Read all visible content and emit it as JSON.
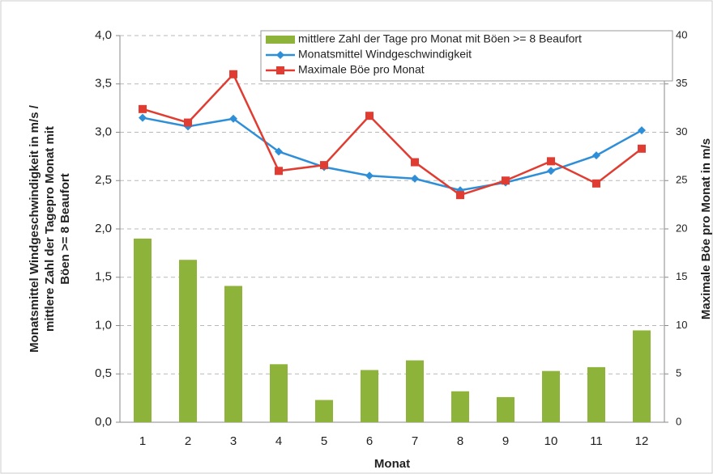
{
  "chart_data": {
    "type": "bar_line_combo",
    "ylabel": [
      "Monatsmittel  Windgeschwindigkeit in m/s /",
      "mittlere Zahl der Tagepro Monat mit",
      "Böen >= 8 Beaufort"
    ],
    "y2label": "Maximale Böe pro Monat in m/s",
    "xlabel": "Monat",
    "categories": [
      "1",
      "2",
      "3",
      "4",
      "5",
      "6",
      "7",
      "8",
      "9",
      "10",
      "11",
      "12"
    ],
    "ylim": [
      0,
      4
    ],
    "yticks": [
      {
        "value": 0,
        "label": "0,0"
      },
      {
        "value": 0.5,
        "label": "0,5"
      },
      {
        "value": 1,
        "label": "1,0"
      },
      {
        "value": 1.5,
        "label": "1,5"
      },
      {
        "value": 2,
        "label": "2,0"
      },
      {
        "value": 2.5,
        "label": "2,5"
      },
      {
        "value": 3,
        "label": "3,0"
      },
      {
        "value": 3.5,
        "label": "3,5"
      },
      {
        "value": 4,
        "label": "4,0"
      }
    ],
    "y2lim": [
      0,
      40
    ],
    "y2ticks": [
      0,
      5,
      10,
      15,
      20,
      25,
      30,
      35,
      40
    ],
    "grid": true,
    "legend": "top-right",
    "series": [
      {
        "name": "mittlere Zahl der Tage pro Monat mit Böen >= 8 Beaufort",
        "kind": "bar",
        "color": "#8db33a",
        "values": [
          1.9,
          1.68,
          1.41,
          0.6,
          0.23,
          0.54,
          0.64,
          0.32,
          0.26,
          0.53,
          0.57,
          0.95
        ]
      },
      {
        "name": "Monatsmittel Windgeschwindigkeit",
        "kind": "line",
        "marker": "diamond",
        "color": "#2e8fd8",
        "values": [
          3.15,
          3.06,
          3.14,
          2.8,
          2.64,
          2.55,
          2.52,
          2.4,
          2.48,
          2.6,
          2.76,
          3.02
        ]
      },
      {
        "name": "Maximale Böe pro Monat",
        "kind": "line",
        "marker": "square",
        "axis": "y2",
        "color": "#e03c31",
        "values": [
          32.4,
          31,
          36,
          26,
          26.6,
          31.7,
          26.9,
          23.5,
          25,
          27,
          24.7,
          28.3
        ]
      }
    ]
  }
}
